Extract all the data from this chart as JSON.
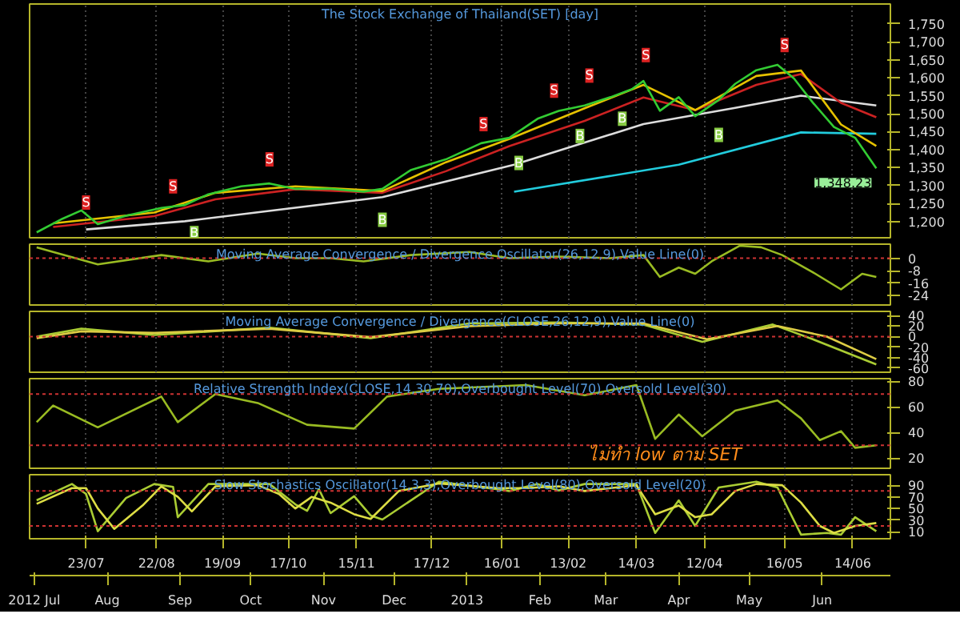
{
  "chart_data": [
    {
      "type": "line",
      "title": "The Stock Exchange of Thailand(SET) [day]",
      "xlim": [
        "2012-06-29",
        "2013-06-30"
      ],
      "xticks": [
        {
          "value": "2012-07-23",
          "label": null
        },
        {
          "value": "2012-08-22",
          "label": null
        },
        {
          "value": "2012-09-19",
          "label": null
        },
        {
          "value": "2012-10-17",
          "label": null
        },
        {
          "value": "2012-11-15",
          "label": null
        },
        {
          "value": "2012-12-17",
          "label": null
        },
        {
          "value": "2013-01-16",
          "label": null
        },
        {
          "value": "2013-02-13",
          "label": null
        },
        {
          "value": "2013-03-14",
          "label": null
        },
        {
          "value": "2013-04-12",
          "label": null
        },
        {
          "value": "2013-05-16",
          "label": null
        },
        {
          "value": "2013-06-14",
          "label": null
        }
      ],
      "tick_labels": "y",
      "grid": "x",
      "ylim": [
        1155,
        1805
      ],
      "yticks": [
        {
          "value": 1200,
          "label": "1,200"
        },
        {
          "value": 1250,
          "label": "1,250"
        },
        {
          "value": 1300,
          "label": "1,300"
        },
        {
          "value": 1350,
          "label": "1,350"
        },
        {
          "value": 1400,
          "label": "1,400"
        },
        {
          "value": 1450,
          "label": "1,450"
        },
        {
          "value": 1500,
          "label": "1,500"
        },
        {
          "value": 1550,
          "label": "1,550"
        },
        {
          "value": 1600,
          "label": "1,600"
        },
        {
          "value": 1650,
          "label": "1,650"
        },
        {
          "value": 1700,
          "label": "1,700"
        },
        {
          "value": 1750,
          "label": "1,750"
        }
      ],
      "series": [
        {
          "color": "#dddddd",
          "x": [
            "2012-07-23",
            "2012-09-03",
            "2012-11-26",
            "2013-01-21",
            "2013-03-17",
            "2013-04-25",
            "2013-05-23",
            "2013-06-24"
          ],
          "values": [
            1178,
            1201,
            1268,
            1358,
            1471,
            1516,
            1550,
            1523
          ]
        },
        {
          "color": "#22ccdd",
          "x": [
            "2013-01-21",
            "2013-04-01",
            "2013-05-23",
            "2013-06-24"
          ],
          "values": [
            1283,
            1358,
            1448,
            1444
          ]
        },
        {
          "color": "#cc2222",
          "x": [
            "2012-07-09",
            "2012-08-21",
            "2012-09-16",
            "2012-10-20",
            "2012-11-26",
            "2012-12-23",
            "2013-01-19",
            "2013-02-20",
            "2013-03-17",
            "2013-04-08",
            "2013-05-04",
            "2013-05-23",
            "2013-06-09",
            "2013-06-24"
          ],
          "values": [
            1185,
            1215,
            1262,
            1290,
            1280,
            1340,
            1410,
            1480,
            1545,
            1510,
            1580,
            1610,
            1530,
            1490
          ]
        },
        {
          "color": "#e6c200",
          "x": [
            "2012-07-09",
            "2012-08-21",
            "2012-09-16",
            "2012-10-20",
            "2012-11-26",
            "2012-12-23",
            "2013-01-19",
            "2013-02-20",
            "2013-03-17",
            "2013-04-08",
            "2013-05-04",
            "2013-05-23",
            "2013-06-09",
            "2013-06-24"
          ],
          "values": [
            1195,
            1225,
            1280,
            1298,
            1285,
            1365,
            1430,
            1515,
            1580,
            1510,
            1605,
            1620,
            1470,
            1410
          ]
        },
        {
          "color": "#33cc33",
          "x": [
            "2012-07-02",
            "2012-07-13",
            "2012-07-21",
            "2012-07-28",
            "2012-08-09",
            "2012-08-24",
            "2012-09-03",
            "2012-09-13",
            "2012-09-27",
            "2012-10-09",
            "2012-10-20",
            "2012-11-04",
            "2012-11-18",
            "2012-11-26",
            "2012-12-08",
            "2012-12-23",
            "2013-01-07",
            "2013-01-19",
            "2013-01-31",
            "2013-02-09",
            "2013-02-20",
            "2013-03-03",
            "2013-03-12",
            "2013-03-17",
            "2013-03-24",
            "2013-04-01",
            "2013-04-08",
            "2013-04-18",
            "2013-04-25",
            "2013-05-04",
            "2013-05-13",
            "2013-05-20",
            "2013-05-28",
            "2013-06-06",
            "2013-06-15",
            "2013-06-24"
          ],
          "values": [
            1170,
            1208,
            1231,
            1193,
            1216,
            1238,
            1246,
            1276,
            1298,
            1306,
            1291,
            1291,
            1283,
            1291,
            1343,
            1373,
            1418,
            1433,
            1486,
            1508,
            1523,
            1546,
            1568,
            1591,
            1508,
            1546,
            1493,
            1538,
            1583,
            1621,
            1636,
            1598,
            1531,
            1463,
            1433,
            1348.23
          ]
        }
      ],
      "annotations": [
        {
          "text": "S",
          "x": "2012-07-23",
          "y": 1253
        },
        {
          "text": "S",
          "x": "2012-08-29",
          "y": 1298
        },
        {
          "text": "S",
          "x": "2012-10-09",
          "y": 1373
        },
        {
          "text": "S",
          "x": "2013-01-08",
          "y": 1471
        },
        {
          "text": "S",
          "x": "2013-02-07",
          "y": 1564
        },
        {
          "text": "S",
          "x": "2013-02-22",
          "y": 1606
        },
        {
          "text": "S",
          "x": "2013-03-18",
          "y": 1663
        },
        {
          "text": "S",
          "x": "2013-05-16",
          "y": 1691
        },
        {
          "text": "B",
          "x": "2012-09-07",
          "y": 1168
        },
        {
          "text": "B",
          "x": "2012-11-26",
          "y": 1205
        },
        {
          "text": "B",
          "x": "2013-01-23",
          "y": 1363
        },
        {
          "text": "B",
          "x": "2013-02-18",
          "y": 1438
        },
        {
          "text": "B",
          "x": "2013-03-08",
          "y": 1486
        },
        {
          "text": "B",
          "x": "2013-04-18",
          "y": 1441
        },
        {
          "text": "1,348.23",
          "x": "2013-06-24",
          "y": 1348.23
        }
      ]
    },
    {
      "type": "line",
      "title": "Moving Average Convergence / Divergence Oscillator(26,12,9),Value Line(0)",
      "xlim": [
        "2012-06-29",
        "2013-06-30"
      ],
      "xticks": [
        {
          "value": "2012-07-23",
          "label": null
        },
        {
          "value": "2012-08-22",
          "label": null
        },
        {
          "value": "2012-09-19",
          "label": null
        },
        {
          "value": "2012-10-17",
          "label": null
        },
        {
          "value": "2012-11-15",
          "label": null
        },
        {
          "value": "2012-12-17",
          "label": null
        },
        {
          "value": "2013-01-16",
          "label": null
        },
        {
          "value": "2013-02-13",
          "label": null
        },
        {
          "value": "2013-03-14",
          "label": null
        },
        {
          "value": "2013-04-12",
          "label": null
        },
        {
          "value": "2013-05-16",
          "label": null
        },
        {
          "value": "2013-06-14",
          "label": null
        }
      ],
      "tick_labels": "y",
      "grid": "x",
      "ylim": [
        -30,
        9
      ],
      "yticks": [
        0,
        -8,
        -16,
        -24
      ],
      "ref_lines": [
        {
          "axis": "y",
          "value": 0,
          "color": "#cc3333",
          "line_style": "dotted"
        }
      ],
      "series": [
        {
          "color": "#99bb22",
          "x": [
            "2012-07-02",
            "2012-07-09",
            "2012-07-28",
            "2012-08-24",
            "2012-09-13",
            "2012-10-04",
            "2012-10-20",
            "2012-10-30",
            "2012-11-04",
            "2012-11-18",
            "2012-12-08",
            "2013-01-02",
            "2013-01-19",
            "2013-02-09",
            "2013-03-03",
            "2013-03-17",
            "2013-03-24",
            "2013-04-01",
            "2013-04-08",
            "2013-04-15",
            "2013-04-27",
            "2013-05-06",
            "2013-05-15",
            "2013-05-28",
            "2013-06-09",
            "2013-06-18",
            "2013-06-24"
          ],
          "values": [
            7,
            4,
            -4,
            2,
            -2,
            3,
            0,
            0,
            0,
            -2,
            2,
            4,
            0,
            1,
            0,
            2,
            -12,
            -6,
            -10,
            -2,
            8,
            7,
            2,
            -9,
            -20,
            -10,
            -12
          ]
        }
      ]
    },
    {
      "type": "line",
      "title": "Moving Average Convergence / Divergence(CLOSE,26,12,9),Value Line(0)",
      "xlim": [
        "2012-06-29",
        "2013-06-30"
      ],
      "xticks": [
        {
          "value": "2012-07-23",
          "label": null
        },
        {
          "value": "2012-08-22",
          "label": null
        },
        {
          "value": "2012-09-19",
          "label": null
        },
        {
          "value": "2012-10-17",
          "label": null
        },
        {
          "value": "2012-11-15",
          "label": null
        },
        {
          "value": "2012-12-17",
          "label": null
        },
        {
          "value": "2013-01-16",
          "label": null
        },
        {
          "value": "2013-02-13",
          "label": null
        },
        {
          "value": "2013-03-14",
          "label": null
        },
        {
          "value": "2013-04-12",
          "label": null
        },
        {
          "value": "2013-05-16",
          "label": null
        },
        {
          "value": "2013-06-14",
          "label": null
        }
      ],
      "tick_labels": "y",
      "grid": "x",
      "ylim": [
        -68,
        48
      ],
      "yticks": [
        40,
        20,
        0,
        -20,
        -40,
        -60
      ],
      "ref_lines": [
        {
          "axis": "y",
          "value": 0,
          "color": "#cc3333",
          "line_style": "dotted"
        }
      ],
      "series": [
        {
          "color": "#aacc33",
          "x": [
            "2012-07-02",
            "2012-07-21",
            "2012-08-21",
            "2012-10-09",
            "2012-11-21",
            "2013-01-02",
            "2013-02-09",
            "2013-03-17",
            "2013-04-11",
            "2013-05-11",
            "2013-05-28",
            "2013-06-24"
          ],
          "values": [
            0,
            15,
            3,
            17,
            -3,
            25,
            27,
            23,
            -10,
            23,
            -5,
            -53
          ]
        },
        {
          "color": "#ddcc44",
          "x": [
            "2012-07-02",
            "2012-07-21",
            "2012-08-21",
            "2012-10-09",
            "2012-11-21",
            "2013-01-02",
            "2013-02-09",
            "2013-03-17",
            "2013-04-13",
            "2013-05-13",
            "2013-06-03",
            "2013-06-24"
          ],
          "values": [
            -3,
            10,
            7,
            15,
            -1,
            20,
            25,
            25,
            -5,
            20,
            0,
            -43
          ]
        }
      ]
    },
    {
      "type": "line",
      "title": "Relative Strength Index(CLOSE,14,30,70),Overbought Level(70),Oversold Level(30)",
      "annotations": [
        "ไม่ทำ low ตาม SET"
      ],
      "xlim": [
        "2012-06-29",
        "2013-06-30"
      ],
      "xticks": [
        {
          "value": "2012-07-23",
          "label": null
        },
        {
          "value": "2012-08-22",
          "label": null
        },
        {
          "value": "2012-09-19",
          "label": null
        },
        {
          "value": "2012-10-17",
          "label": null
        },
        {
          "value": "2012-11-15",
          "label": null
        },
        {
          "value": "2012-12-17",
          "label": null
        },
        {
          "value": "2013-01-16",
          "label": null
        },
        {
          "value": "2013-02-13",
          "label": null
        },
        {
          "value": "2013-03-14",
          "label": null
        },
        {
          "value": "2013-04-12",
          "label": null
        },
        {
          "value": "2013-05-16",
          "label": null
        },
        {
          "value": "2013-06-14",
          "label": null
        }
      ],
      "tick_labels": "y",
      "grid": "x",
      "ylim": [
        12,
        82
      ],
      "yticks": [
        20,
        40,
        60,
        80
      ],
      "ref_lines": [
        {
          "axis": "y",
          "value": 70,
          "color": "#cc3333",
          "line_style": "dotted"
        },
        {
          "axis": "y",
          "value": 30,
          "color": "#cc3333",
          "line_style": "dotted"
        }
      ],
      "series": [
        {
          "color": "#99bb22",
          "x": [
            "2012-07-02",
            "2012-07-09",
            "2012-07-28",
            "2012-08-24",
            "2012-08-31",
            "2012-09-16",
            "2012-10-04",
            "2012-10-25",
            "2012-11-14",
            "2012-11-28",
            "2012-12-20",
            "2013-01-26",
            "2013-02-20",
            "2013-03-14",
            "2013-03-22",
            "2013-04-01",
            "2013-04-11",
            "2013-04-25",
            "2013-05-13",
            "2013-05-23",
            "2013-05-31",
            "2013-06-09",
            "2013-06-15",
            "2013-06-24"
          ],
          "values": [
            48,
            61,
            44,
            68,
            48,
            70,
            63,
            46,
            43,
            68,
            74,
            77,
            69,
            77,
            35,
            54,
            37,
            57,
            65,
            51,
            34,
            41,
            28,
            30
          ]
        }
      ]
    },
    {
      "type": "line",
      "title": "Slow Stochastics Oscillator(14,3,3),Overbought Level(80),Oversold Level(20)",
      "xlim": [
        "2012-06-29",
        "2013-06-30"
      ],
      "xticks": [
        {
          "value": "2012-07-23",
          "label": "23/07"
        },
        {
          "value": "2012-08-22",
          "label": "22/08"
        },
        {
          "value": "2012-09-19",
          "label": "19/09"
        },
        {
          "value": "2012-10-17",
          "label": "17/10"
        },
        {
          "value": "2012-11-15",
          "label": "15/11"
        },
        {
          "value": "2012-12-17",
          "label": "17/12"
        },
        {
          "value": "2013-01-16",
          "label": "16/01"
        },
        {
          "value": "2013-02-13",
          "label": "13/02"
        },
        {
          "value": "2013-03-14",
          "label": "14/03"
        },
        {
          "value": "2013-04-12",
          "label": "12/04"
        },
        {
          "value": "2013-05-16",
          "label": "16/05"
        },
        {
          "value": "2013-06-14",
          "label": "14/06"
        }
      ],
      "x2lim": [
        "2012-06-29",
        "2013-06-30"
      ],
      "x2ticks": [
        {
          "value": "2012-07-01",
          "label": "2012 Jul"
        },
        {
          "value": "2012-08-01",
          "label": "Aug"
        },
        {
          "value": "2012-09-01",
          "label": "Sep"
        },
        {
          "value": "2012-10-01",
          "label": "Oct"
        },
        {
          "value": "2012-11-01",
          "label": "Nov"
        },
        {
          "value": "2012-12-01",
          "label": "Dec"
        },
        {
          "value": "2013-01-01",
          "label": "2013"
        },
        {
          "value": "2013-02-01",
          "label": "Feb"
        },
        {
          "value": "2013-03-01",
          "label": "Mar"
        },
        {
          "value": "2013-04-01",
          "label": "Apr"
        },
        {
          "value": "2013-05-01",
          "label": "May"
        },
        {
          "value": "2013-06-01",
          "label": "Jun"
        }
      ],
      "grid": "x",
      "ylim": [
        -2,
        108
      ],
      "yticks": [
        10,
        30,
        50,
        70,
        90
      ],
      "ref_lines": [
        {
          "axis": "y",
          "value": 80,
          "color": "#cc3333",
          "line_style": "dotted"
        },
        {
          "axis": "y",
          "value": 20,
          "color": "#cc3333",
          "line_style": "dotted"
        }
      ],
      "series": [
        {
          "color": "#aacc33",
          "x": [
            "2012-07-02",
            "2012-07-17",
            "2012-07-23",
            "2012-07-28",
            "2012-08-09",
            "2012-08-21",
            "2012-08-29",
            "2012-08-31",
            "2012-09-13",
            "2012-10-09",
            "2012-10-20",
            "2012-10-25",
            "2012-10-30",
            "2012-11-04",
            "2012-11-14",
            "2012-11-21",
            "2012-11-26",
            "2012-12-20",
            "2013-01-14",
            "2013-01-19",
            "2013-01-31",
            "2013-02-09",
            "2013-02-20",
            "2013-03-14",
            "2013-03-22",
            "2013-04-01",
            "2013-04-08",
            "2013-04-18",
            "2013-05-04",
            "2013-05-13",
            "2013-05-23",
            "2013-06-03",
            "2013-06-09",
            "2013-06-15",
            "2013-06-24"
          ],
          "values": [
            64,
            92,
            75,
            11,
            68,
            92,
            87,
            35,
            92,
            92,
            57,
            46,
            83,
            42,
            71,
            38,
            31,
            96,
            83,
            80,
            92,
            81,
            92,
            92,
            8,
            64,
            20,
            86,
            96,
            86,
            5,
            8,
            5,
            35,
            11
          ]
        },
        {
          "color": "#dddd44",
          "x": [
            "2012-07-02",
            "2012-07-17",
            "2012-07-23",
            "2012-07-28",
            "2012-08-04",
            "2012-08-16",
            "2012-08-24",
            "2012-08-31",
            "2012-09-06",
            "2012-09-16",
            "2012-10-04",
            "2012-10-13",
            "2012-10-20",
            "2012-10-27",
            "2012-11-04",
            "2012-11-14",
            "2012-11-21",
            "2012-12-03",
            "2012-12-20",
            "2013-01-14",
            "2013-01-26",
            "2013-02-09",
            "2013-02-20",
            "2013-03-03",
            "2013-03-14",
            "2013-03-22",
            "2013-04-01",
            "2013-04-08",
            "2013-04-15",
            "2013-04-25",
            "2013-05-04",
            "2013-05-15",
            "2013-05-23",
            "2013-05-31",
            "2013-06-06",
            "2013-06-15",
            "2013-06-24"
          ],
          "values": [
            58,
            85,
            85,
            50,
            15,
            55,
            88,
            70,
            45,
            88,
            90,
            75,
            50,
            70,
            60,
            40,
            32,
            80,
            93,
            85,
            85,
            88,
            80,
            85,
            90,
            40,
            55,
            35,
            40,
            80,
            92,
            90,
            60,
            20,
            8,
            20,
            25
          ]
        }
      ]
    }
  ]
}
